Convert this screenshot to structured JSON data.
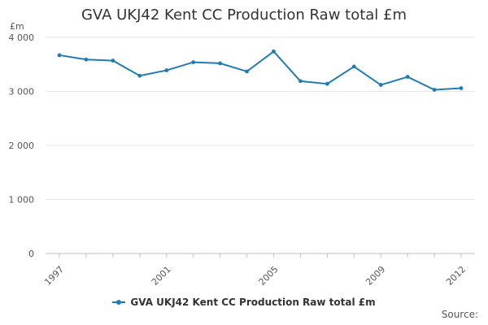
{
  "chart_data": {
    "type": "line",
    "title": "GVA UKJ42 Kent CC Production Raw total £m",
    "ylabel": "£m",
    "xlabel": "",
    "source_label": "Source:",
    "ylim": [
      0,
      4000
    ],
    "yticks": [
      0,
      1000,
      2000,
      3000,
      4000
    ],
    "ytick_labels": [
      "0",
      "1 000",
      "2 000",
      "3 000",
      "4 000"
    ],
    "x": [
      1997,
      1998,
      1999,
      2000,
      2001,
      2002,
      2003,
      2004,
      2005,
      2006,
      2007,
      2008,
      2009,
      2010,
      2011,
      2012
    ],
    "xtick_labels_shown": [
      "1997",
      "2001",
      "2005",
      "2009",
      "2012"
    ],
    "grid": true,
    "legend_position": "bottom",
    "series": [
      {
        "name": "GVA UKJ42 Kent CC Production Raw total £m",
        "color": "#1f7bb6",
        "values": [
          3670,
          3590,
          3570,
          3290,
          3390,
          3540,
          3520,
          3370,
          3740,
          3190,
          3140,
          3460,
          3120,
          3270,
          3030,
          3060
        ]
      }
    ]
  }
}
